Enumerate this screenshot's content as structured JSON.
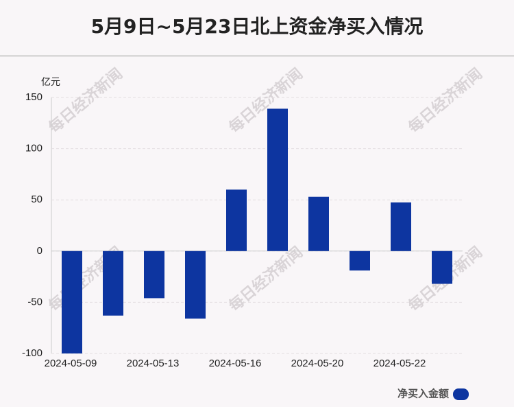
{
  "chart_data": {
    "type": "bar",
    "title": "5月9日~5月23日北上资金净买入情况",
    "y_unit": "亿元",
    "watermark": "每日经济新闻",
    "categories": [
      "2024-05-09",
      null,
      "2024-05-13",
      null,
      "2024-05-16",
      null,
      "2024-05-20",
      null,
      "2024-05-22",
      null
    ],
    "series": [
      {
        "name": "净买入金额",
        "color": "#0d35a0",
        "values": [
          -100,
          -63,
          -46,
          -66,
          60,
          139,
          53,
          -19,
          47.5,
          -32
        ]
      }
    ],
    "ylim": [
      -100,
      150
    ],
    "yticks": [
      -100,
      -50,
      0,
      50,
      100,
      150
    ],
    "grid": true
  }
}
